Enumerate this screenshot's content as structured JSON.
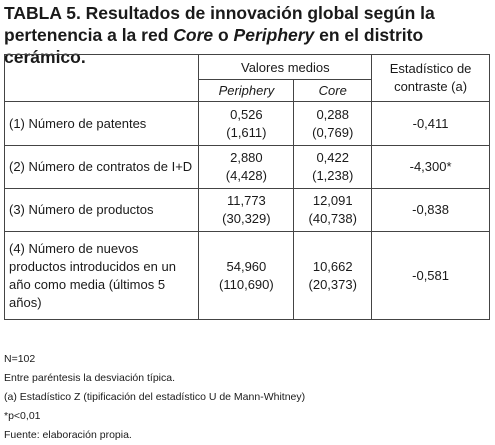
{
  "title": {
    "prefix": "TABLA 5. Resultados de innovación global según la pertenencia a la red ",
    "core": "Core",
    "mid": " o ",
    "periphery": "Periphery",
    "suffix": " en el distrito cerámico."
  },
  "table": {
    "header": {
      "group": "Valores medios",
      "col_periphery": "Periphery",
      "col_core": "Core",
      "col_stat": "Estadístico de contraste (a)"
    },
    "rows": [
      {
        "label": "(1) Número de patentes",
        "periphery_mean": "0,526",
        "periphery_sd": "(1,611)",
        "core_mean": "0,288",
        "core_sd": "(0,769)",
        "stat": "-0,411"
      },
      {
        "label": "(2) Número de contratos de I+D",
        "periphery_mean": "2,880",
        "periphery_sd": "(4,428)",
        "core_mean": "0,422",
        "core_sd": "(1,238)",
        "stat": "-4,300*"
      },
      {
        "label": "(3) Número de productos",
        "periphery_mean": "11,773",
        "periphery_sd": "(30,329)",
        "core_mean": "12,091",
        "core_sd": "(40,738)",
        "stat": "-0,838"
      },
      {
        "label": "(4) Número de nuevos productos introducidos en un año como media (últimos 5 años)",
        "periphery_mean": "54,960",
        "periphery_sd": "(110,690)",
        "core_mean": "10,662",
        "core_sd": "(20,373)",
        "stat": "-0,581"
      }
    ]
  },
  "notes": [
    "N=102",
    "Entre paréntesis la desviación típica.",
    "(a) Estadístico Z (tipificación del estadístico U de Mann-Whitney)",
    "*p<0,01",
    "Fuente: elaboración propia."
  ]
}
